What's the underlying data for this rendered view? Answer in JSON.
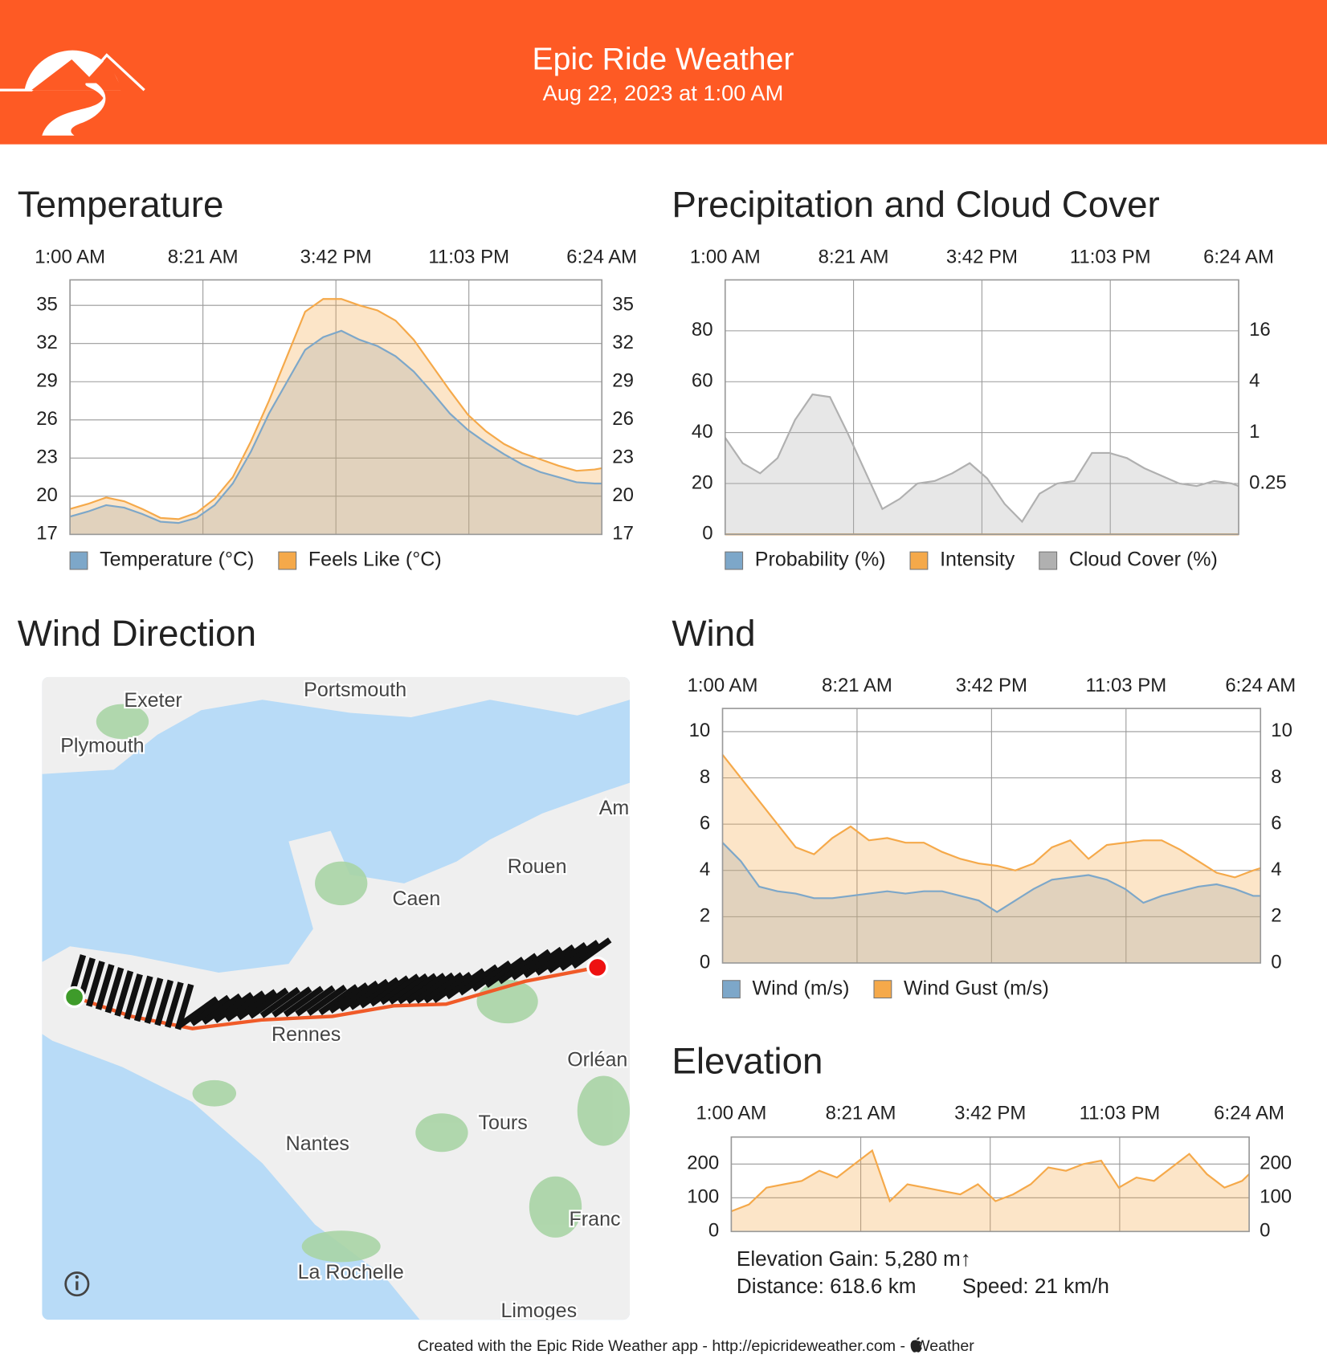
{
  "header": {
    "title": "Epic Ride Weather",
    "subtitle": "Aug 22, 2023 at 1:00 AM"
  },
  "chart_data": [
    {
      "type": "area",
      "title": "Temperature",
      "x": [
        0,
        1,
        2,
        3,
        4,
        5,
        6,
        7,
        8,
        9,
        10,
        11,
        12,
        13,
        14,
        15,
        16,
        17,
        18,
        19,
        20,
        21,
        22,
        23,
        24,
        25,
        26,
        27,
        28,
        29,
        29.4
      ],
      "xlim": [
        0,
        29.4
      ],
      "xticks": [
        {
          "value": 0,
          "label": "1:00 AM"
        },
        {
          "value": 7.35,
          "label": "8:21 AM"
        },
        {
          "value": 14.7,
          "label": "3:42 PM"
        },
        {
          "value": 22.05,
          "label": "11:03 PM"
        },
        {
          "value": 29.4,
          "label": "6:24 AM"
        }
      ],
      "ylim": [
        17,
        37
      ],
      "yticks": [
        17,
        20,
        23,
        26,
        29,
        32,
        35
      ],
      "y2lim": [
        17,
        37
      ],
      "y2ticks": [
        17,
        20,
        23,
        26,
        29,
        32,
        35
      ],
      "grid": true,
      "series": [
        {
          "name": "Temperature (°C)",
          "color": "#7da7c9",
          "values": [
            18.4,
            18.8,
            19.3,
            19.1,
            18.6,
            18.0,
            17.9,
            18.3,
            19.3,
            21.0,
            23.5,
            26.5,
            29.0,
            31.5,
            32.5,
            33.0,
            32.3,
            31.8,
            31.0,
            29.8,
            28.2,
            26.5,
            25.2,
            24.2,
            23.3,
            22.5,
            21.9,
            21.5,
            21.1,
            21.0,
            21.0
          ]
        },
        {
          "name": "Feels Like (°C)",
          "color": "#f5a94a",
          "values": [
            19.0,
            19.4,
            19.9,
            19.6,
            19.0,
            18.3,
            18.2,
            18.7,
            19.8,
            21.5,
            24.3,
            27.5,
            31.0,
            34.5,
            35.5,
            35.5,
            35.0,
            34.6,
            33.8,
            32.3,
            30.3,
            28.3,
            26.4,
            25.1,
            24.1,
            23.4,
            22.9,
            22.4,
            22.0,
            22.1,
            22.2
          ]
        }
      ]
    },
    {
      "type": "area",
      "title": "Precipitation and Cloud Cover",
      "x": [
        0,
        1,
        2,
        3,
        4,
        5,
        6,
        7,
        8,
        9,
        10,
        11,
        12,
        13,
        14,
        15,
        16,
        17,
        18,
        19,
        20,
        21,
        22,
        23,
        24,
        25,
        26,
        27,
        28,
        29,
        29.4
      ],
      "xlim": [
        0,
        29.4
      ],
      "xticks": [
        {
          "value": 0,
          "label": "1:00 AM"
        },
        {
          "value": 7.35,
          "label": "8:21 AM"
        },
        {
          "value": 14.7,
          "label": "3:42 PM"
        },
        {
          "value": 22.05,
          "label": "11:03 PM"
        },
        {
          "value": 29.4,
          "label": "6:24 AM"
        }
      ],
      "ylim": [
        0,
        100
      ],
      "yticks": [
        0,
        20,
        40,
        60,
        80
      ],
      "y2lim": [
        0.0625,
        64
      ],
      "y2ticks": [
        0.25,
        1,
        4,
        16
      ],
      "y2log": true,
      "grid": true,
      "series": [
        {
          "name": "Probability (%)",
          "color": "#7da7c9",
          "values": [
            0,
            0,
            0,
            0,
            0,
            0,
            0,
            0,
            0,
            0,
            0,
            0,
            0,
            0,
            0,
            0,
            0,
            0,
            0,
            0,
            0,
            0,
            0,
            0,
            0,
            0,
            0,
            0,
            0,
            0,
            0
          ]
        },
        {
          "name": "Intensity",
          "color": "#f5a94a",
          "axis": "y2",
          "values": [
            0,
            0,
            0,
            0,
            0,
            0,
            0,
            0,
            0,
            0,
            0,
            0,
            0,
            0,
            0,
            0,
            0,
            0,
            0,
            0,
            0,
            0,
            0,
            0,
            0,
            0,
            0,
            0,
            0,
            0,
            0
          ]
        },
        {
          "name": "Cloud Cover (%)",
          "color": "#b0b0b0",
          "values": [
            38,
            28,
            24,
            30,
            45,
            55,
            54,
            40,
            25,
            10,
            14,
            20,
            21,
            24,
            28,
            22,
            12,
            5,
            16,
            20,
            21,
            32,
            32,
            30,
            26,
            23,
            20,
            19,
            21,
            20,
            19
          ]
        }
      ]
    },
    {
      "type": "area",
      "title": "Wind",
      "x": [
        0,
        1,
        2,
        3,
        4,
        5,
        6,
        7,
        8,
        9,
        10,
        11,
        12,
        13,
        14,
        15,
        16,
        17,
        18,
        19,
        20,
        21,
        22,
        23,
        24,
        25,
        26,
        27,
        28,
        29,
        29.4
      ],
      "xlim": [
        0,
        29.4
      ],
      "xticks": [
        {
          "value": 0,
          "label": "1:00 AM"
        },
        {
          "value": 7.35,
          "label": "8:21 AM"
        },
        {
          "value": 14.7,
          "label": "3:42 PM"
        },
        {
          "value": 22.05,
          "label": "11:03 PM"
        },
        {
          "value": 29.4,
          "label": "6:24 AM"
        }
      ],
      "ylim": [
        0,
        11
      ],
      "yticks": [
        0,
        2,
        4,
        6,
        8,
        10
      ],
      "y2lim": [
        0,
        11
      ],
      "y2ticks": [
        0,
        2,
        4,
        6,
        8,
        10
      ],
      "grid": true,
      "series": [
        {
          "name": "Wind (m/s)",
          "color": "#7da7c9",
          "values": [
            5.2,
            4.4,
            3.3,
            3.1,
            3.0,
            2.8,
            2.8,
            2.9,
            3.0,
            3.1,
            3.0,
            3.1,
            3.1,
            2.9,
            2.7,
            2.2,
            2.7,
            3.2,
            3.6,
            3.7,
            3.8,
            3.6,
            3.2,
            2.6,
            2.9,
            3.1,
            3.3,
            3.4,
            3.2,
            2.9,
            2.9
          ]
        },
        {
          "name": "Wind Gust (m/s)",
          "color": "#f5a94a",
          "values": [
            9.0,
            8.0,
            7.0,
            6.0,
            5.0,
            4.7,
            5.4,
            5.9,
            5.3,
            5.4,
            5.2,
            5.2,
            4.8,
            4.5,
            4.3,
            4.2,
            4.0,
            4.3,
            5.0,
            5.3,
            4.5,
            5.1,
            5.2,
            5.3,
            5.3,
            4.9,
            4.4,
            3.9,
            3.7,
            4.0,
            4.1
          ]
        }
      ]
    },
    {
      "type": "area",
      "title": "Elevation",
      "x": [
        0,
        1,
        2,
        3,
        4,
        5,
        6,
        7,
        8,
        9,
        10,
        11,
        12,
        13,
        14,
        15,
        16,
        17,
        18,
        19,
        20,
        21,
        22,
        23,
        24,
        25,
        26,
        27,
        28,
        29,
        29.4
      ],
      "xlim": [
        0,
        29.4
      ],
      "xticks": [
        {
          "value": 0,
          "label": "1:00 AM"
        },
        {
          "value": 7.35,
          "label": "8:21 AM"
        },
        {
          "value": 14.7,
          "label": "3:42 PM"
        },
        {
          "value": 22.05,
          "label": "11:03 PM"
        },
        {
          "value": 29.4,
          "label": "6:24 AM"
        }
      ],
      "ylim": [
        0,
        280
      ],
      "yticks": [
        0,
        100,
        200
      ],
      "y2lim": [
        0,
        280
      ],
      "y2ticks": [
        0,
        100,
        200
      ],
      "grid": true,
      "series": [
        {
          "color": "#f5a94a",
          "values": [
            60,
            80,
            130,
            140,
            150,
            180,
            160,
            200,
            240,
            90,
            140,
            130,
            120,
            110,
            140,
            90,
            110,
            140,
            190,
            180,
            200,
            210,
            130,
            160,
            150,
            190,
            230,
            170,
            130,
            150,
            170
          ]
        }
      ]
    }
  ],
  "map": {
    "title": "Wind Direction",
    "labels": [
      "Exeter",
      "Portsmouth",
      "Plymouth",
      "Am",
      "Rouen",
      "Caen",
      "Rennes",
      "Orléan",
      "Tours",
      "Nantes",
      "Franc",
      "La Rochelle",
      "Limoges"
    ]
  },
  "stats": {
    "gain": "Elevation Gain: 5,280 m↑",
    "distance": "Distance: 618.6 km",
    "speed": "Speed: 21 km/h"
  },
  "footer": {
    "text": "Created with the Epic Ride Weather app - http://epicrideweather.com -",
    "weather": "Weather"
  }
}
